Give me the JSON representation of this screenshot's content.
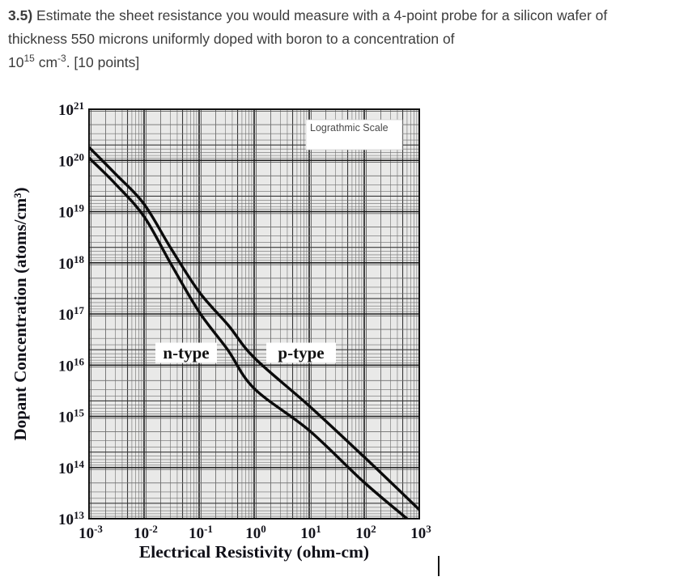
{
  "question": {
    "number": "3.5)",
    "line1": " Estimate the sheet resistance you would measure  with a 4-point probe for a silicon wafer of",
    "line2": "thickness 550 microns uniformly doped with boron to a concentration of",
    "l3_base1": "10",
    "l3_sup1": "15",
    "l3_base2": " cm",
    "l3_sup2": "-3",
    "l3_tail": ".  [10 points]",
    "text_color": "#3c3c3c"
  },
  "chart_data": {
    "type": "line",
    "x_scale": "log",
    "y_scale": "log",
    "title": "",
    "xlabel": "Electrical Resistivity (ohm-cm)",
    "ylabel": "Dopant Concentration (atoms/cm³)",
    "xlim": [
      0.001,
      1000
    ],
    "ylim": [
      10000000000000.0,
      1e+21
    ],
    "x_ticks": [
      "10^-3",
      "10^-2",
      "10^-1",
      "10^0",
      "10^1",
      "10^2",
      "10^3"
    ],
    "y_ticks": [
      "10^21",
      "10^20",
      "10^19",
      "10^18",
      "10^17",
      "10^16",
      "10^15",
      "10^14",
      "10^13"
    ],
    "grid": true,
    "legend_position": "none",
    "annotation": "Lograthmic Scale",
    "plot_bg": "#e9e9e8",
    "grid_major_color": "#1c1c1c",
    "grid_minor_color": "#6e6e6e",
    "curve_color": "#0b0b0b",
    "axis_text_color": "#14141c",
    "series": [
      {
        "name": "n-type",
        "points": [
          [
            0.001,
            1.12e+20
          ],
          [
            0.003,
            3.5e+19
          ],
          [
            0.01,
            8e+18
          ],
          [
            0.03,
            1e+18
          ],
          [
            0.1,
            1.1e+17
          ],
          [
            0.33,
            2e+16
          ],
          [
            1,
            3500000000000000.0
          ],
          [
            10,
            530000000000000.0
          ],
          [
            100,
            51000000000000.0
          ],
          [
            600,
            10000000000000.0
          ]
        ]
      },
      {
        "name": "p-type",
        "points": [
          [
            0.001,
            1.8e+20
          ],
          [
            0.003,
            5.5e+19
          ],
          [
            0.01,
            1.4e+19
          ],
          [
            0.03,
            2e+18
          ],
          [
            0.1,
            2.7e+17
          ],
          [
            0.34,
            6e+16
          ],
          [
            1,
            1.4e+16
          ],
          [
            10,
            1600000000000000.0
          ],
          [
            100,
            160000000000000.0
          ],
          [
            1000,
            15000000000000.0
          ]
        ]
      }
    ]
  }
}
